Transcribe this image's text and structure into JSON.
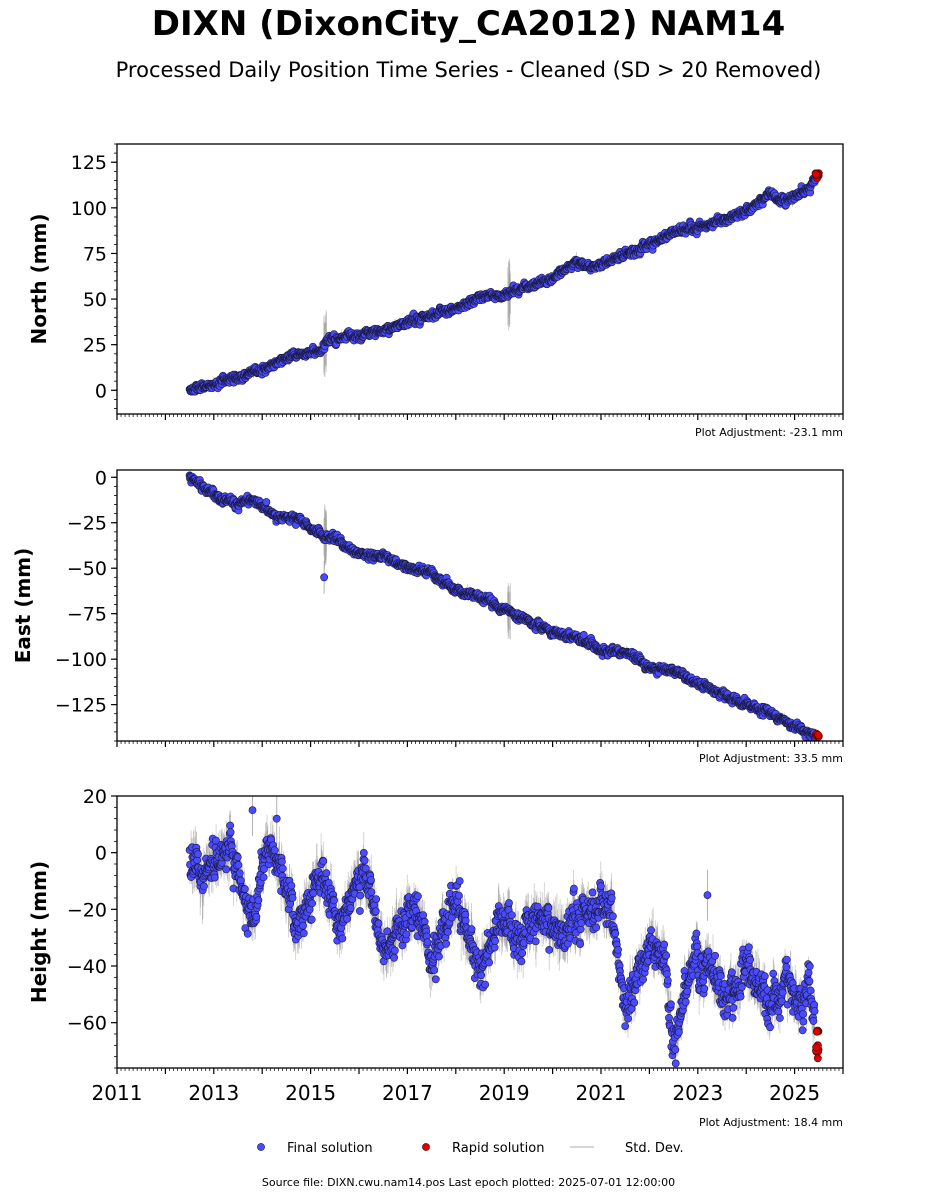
{
  "title": "DIXN (DixonCity_CA2012) NAM14",
  "subtitle": "Processed Daily Position Time Series - Cleaned (SD > 20 Removed)",
  "footer": "Source file: DIXN.cwu.nam14.pos  Last epoch plotted: 2025-07-01 12:00:00",
  "colors": {
    "final": "#4a4aff",
    "rapid": "#e00000",
    "std": "#9e9e9e",
    "edge": "#1a1a40"
  },
  "legend": [
    {
      "label": "Final solution",
      "kind": "final-marker"
    },
    {
      "label": "Rapid solution",
      "kind": "rapid-marker"
    },
    {
      "label": "Std. Dev.",
      "kind": "std-line"
    }
  ],
  "chart_data": [
    {
      "type": "scatter",
      "ylabel": "North (mm)",
      "adjustment": "Plot Adjustment: -23.1 mm",
      "xlim": [
        2011,
        2026
      ],
      "ylim": [
        -13,
        135
      ],
      "yticks": [
        0,
        25,
        50,
        75,
        100,
        125
      ],
      "xticks": [
        2011,
        2013,
        2015,
        2017,
        2019,
        2021,
        2023,
        2025
      ],
      "show_xticklabels": false,
      "trend": [
        [
          2012.5,
          0
        ],
        [
          2013,
          3
        ],
        [
          2014,
          11
        ],
        [
          2014.5,
          18
        ],
        [
          2015.2,
          22
        ],
        [
          2015.4,
          28
        ],
        [
          2016,
          30
        ],
        [
          2017,
          37
        ],
        [
          2018,
          45
        ],
        [
          2018.6,
          52
        ],
        [
          2019,
          52
        ],
        [
          2019.5,
          57
        ],
        [
          2020,
          61
        ],
        [
          2020.5,
          71
        ],
        [
          2020.8,
          67
        ],
        [
          2021.5,
          74
        ],
        [
          2022,
          80
        ],
        [
          2022.5,
          87
        ],
        [
          2023,
          89
        ],
        [
          2023.5,
          93
        ],
        [
          2024,
          98
        ],
        [
          2024.5,
          108
        ],
        [
          2024.7,
          104
        ],
        [
          2025,
          106
        ],
        [
          2025.3,
          110
        ],
        [
          2025.5,
          117
        ]
      ],
      "noise": 1.3,
      "std": 1.5,
      "spikes": [
        [
          2015.3,
          18
        ],
        [
          2019.1,
          22
        ]
      ],
      "outliers": [],
      "rapid": {
        "x_range": [
          2025.43,
          2025.5
        ],
        "y_range": [
          116,
          119
        ]
      }
    },
    {
      "type": "scatter",
      "ylabel": "East (mm)",
      "adjustment": "Plot Adjustment: 33.5 mm",
      "xlim": [
        2011,
        2026
      ],
      "ylim": [
        -145,
        4
      ],
      "yticks": [
        0,
        -25,
        -50,
        -75,
        -100,
        -125
      ],
      "xticks": [
        2011,
        2013,
        2015,
        2017,
        2019,
        2021,
        2023,
        2025
      ],
      "show_xticklabels": false,
      "trend": [
        [
          2012.5,
          0
        ],
        [
          2013,
          -10
        ],
        [
          2013.5,
          -15
        ],
        [
          2013.8,
          -12
        ],
        [
          2014.3,
          -22
        ],
        [
          2014.7,
          -22
        ],
        [
          2015.2,
          -32
        ],
        [
          2015.5,
          -33
        ],
        [
          2016,
          -43
        ],
        [
          2016.5,
          -43
        ],
        [
          2017,
          -50
        ],
        [
          2017.5,
          -53
        ],
        [
          2018,
          -62
        ],
        [
          2018.6,
          -67
        ],
        [
          2019,
          -73
        ],
        [
          2019.5,
          -79
        ],
        [
          2020,
          -85
        ],
        [
          2020.6,
          -89
        ],
        [
          2021,
          -95
        ],
        [
          2021.5,
          -96
        ],
        [
          2022,
          -105
        ],
        [
          2022.5,
          -106
        ],
        [
          2023,
          -114
        ],
        [
          2023.5,
          -119
        ],
        [
          2024,
          -125
        ],
        [
          2024.5,
          -130
        ],
        [
          2025,
          -137
        ],
        [
          2025.5,
          -143
        ]
      ],
      "noise": 1.3,
      "std": 1.5,
      "spikes": [
        [
          2015.3,
          18
        ],
        [
          2019.1,
          18
        ]
      ],
      "outliers": [
        [
          2015.28,
          -55
        ]
      ],
      "rapid": {
        "x_range": [
          2025.43,
          2025.5
        ],
        "y_range": [
          -143,
          -141
        ]
      }
    },
    {
      "type": "scatter",
      "ylabel": "Height (mm)",
      "adjustment": "Plot Adjustment: 18.4 mm",
      "xlim": [
        2011,
        2026
      ],
      "ylim": [
        -76,
        20
      ],
      "yticks": [
        20,
        0,
        -20,
        -40,
        -60
      ],
      "xticks": [
        2011,
        2013,
        2015,
        2017,
        2019,
        2021,
        2023,
        2025
      ],
      "show_xticklabels": true,
      "trend": [
        [
          2012.5,
          -2
        ],
        [
          2012.8,
          -8
        ],
        [
          2013.3,
          2
        ],
        [
          2013.8,
          -25
        ],
        [
          2014.1,
          2
        ],
        [
          2014.4,
          -5
        ],
        [
          2014.7,
          -28
        ],
        [
          2015.2,
          -8
        ],
        [
          2015.6,
          -25
        ],
        [
          2016.1,
          -5
        ],
        [
          2016.5,
          -35
        ],
        [
          2016.9,
          -25
        ],
        [
          2017.2,
          -20
        ],
        [
          2017.5,
          -40
        ],
        [
          2018,
          -15
        ],
        [
          2018.5,
          -42
        ],
        [
          2018.9,
          -25
        ],
        [
          2019.3,
          -30
        ],
        [
          2019.8,
          -20
        ],
        [
          2020.2,
          -30
        ],
        [
          2020.6,
          -22
        ],
        [
          2021,
          -20
        ],
        [
          2021.2,
          -18
        ],
        [
          2021.5,
          -55
        ],
        [
          2022,
          -33
        ],
        [
          2022.3,
          -35
        ],
        [
          2022.5,
          -68
        ],
        [
          2022.9,
          -40
        ],
        [
          2023.3,
          -42
        ],
        [
          2023.6,
          -55
        ],
        [
          2024,
          -38
        ],
        [
          2024.5,
          -55
        ],
        [
          2024.8,
          -45
        ],
        [
          2025.1,
          -55
        ],
        [
          2025.3,
          -45
        ],
        [
          2025.45,
          -65
        ]
      ],
      "noise": 4,
      "std": 5,
      "spikes": [],
      "outliers": [
        [
          2013.8,
          15
        ],
        [
          2014.3,
          12
        ],
        [
          2023.2,
          -15
        ]
      ],
      "rapid": {
        "x_range": [
          2025.42,
          2025.5
        ],
        "y_range": [
          -74,
          -62
        ]
      }
    }
  ]
}
